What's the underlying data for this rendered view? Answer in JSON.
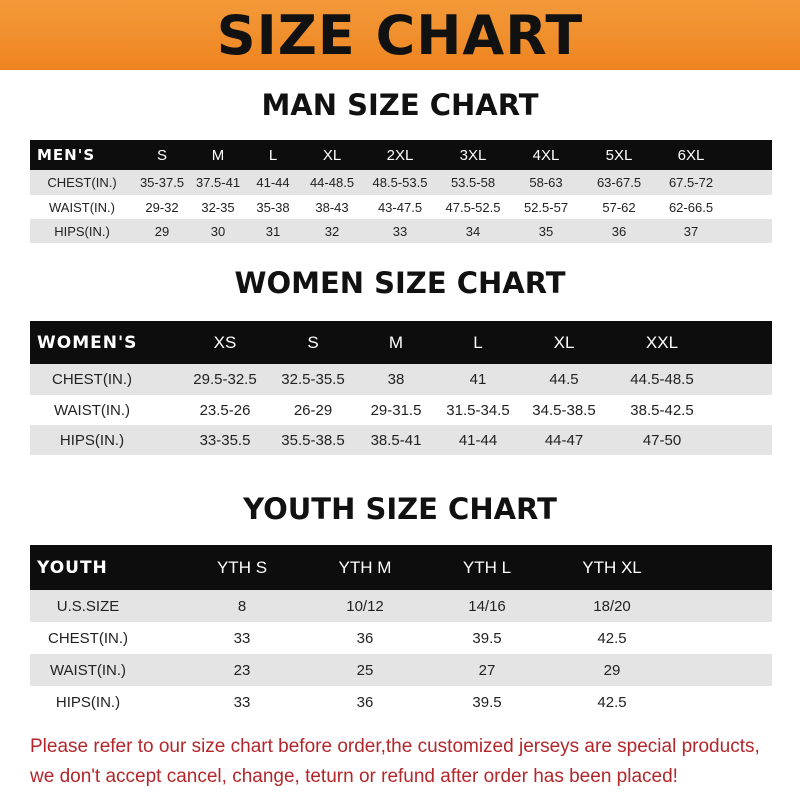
{
  "banner": {
    "title": "SIZE CHART",
    "color": "#ef8a25"
  },
  "men": {
    "title": "MAN SIZE CHART",
    "header": [
      "MEN'S",
      "S",
      "M",
      "L",
      "XL",
      "2XL",
      "3XL",
      "4XL",
      "5XL",
      "6XL"
    ],
    "rows": [
      [
        "CHEST(IN.)",
        "35-37.5",
        "37.5-41",
        "41-44",
        "44-48.5",
        "48.5-53.5",
        "53.5-58",
        "58-63",
        "63-67.5",
        "67.5-72"
      ],
      [
        "WAIST(IN.)",
        "29-32",
        "32-35",
        "35-38",
        "38-43",
        "43-47.5",
        "47.5-52.5",
        "52.5-57",
        "57-62",
        "62-66.5"
      ],
      [
        "HIPS(IN.)",
        "29",
        "30",
        "31",
        "32",
        "33",
        "34",
        "35",
        "36",
        "37"
      ]
    ]
  },
  "women": {
    "title": "WOMEN SIZE CHART",
    "header": [
      "WOMEN'S",
      "XS",
      "S",
      "M",
      "L",
      "XL",
      "XXL"
    ],
    "rows": [
      [
        "CHEST(IN.)",
        "29.5-32.5",
        "32.5-35.5",
        "38",
        "41",
        "44.5",
        "44.5-48.5"
      ],
      [
        "WAIST(IN.)",
        "23.5-26",
        "26-29",
        "29-31.5",
        "31.5-34.5",
        "34.5-38.5",
        "38.5-42.5"
      ],
      [
        "HIPS(IN.)",
        "33-35.5",
        "35.5-38.5",
        "38.5-41",
        "41-44",
        "44-47",
        "47-50"
      ]
    ]
  },
  "youth": {
    "title": "YOUTH SIZE CHART",
    "header": [
      "YOUTH",
      "YTH S",
      "YTH M",
      "YTH L",
      "YTH XL"
    ],
    "rows": [
      [
        "U.S.SIZE",
        "8",
        "10/12",
        "14/16",
        "18/20"
      ],
      [
        "CHEST(IN.)",
        "33",
        "36",
        "39.5",
        "42.5"
      ],
      [
        "WAIST(IN.)",
        "23",
        "25",
        "27",
        "29"
      ],
      [
        "HIPS(IN.)",
        "33",
        "36",
        "39.5",
        "42.5"
      ]
    ]
  },
  "note": {
    "line1": "Please refer to our size chart before order,the customized jerseys are special products,",
    "line2": "we don't accept cancel, change, teturn or refund after order has been placed!",
    "color": "#b3262a"
  }
}
